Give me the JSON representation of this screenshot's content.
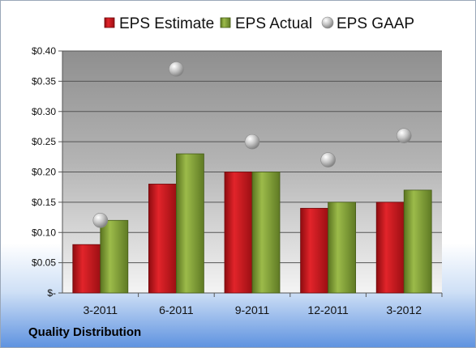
{
  "chart_data": {
    "type": "bar",
    "categories": [
      "3-2011",
      "6-2011",
      "9-2011",
      "12-2011",
      "3-2012"
    ],
    "series": [
      {
        "name": "EPS Estimate",
        "values": [
          0.08,
          0.18,
          0.2,
          0.14,
          0.15
        ],
        "color": "#c0141a",
        "marker": "bar"
      },
      {
        "name": "EPS Actual",
        "values": [
          0.12,
          0.23,
          0.2,
          0.15,
          0.17
        ],
        "color": "#7a9a2e",
        "marker": "bar"
      },
      {
        "name": "EPS GAAP",
        "values": [
          0.12,
          0.37,
          0.25,
          0.22,
          0.26
        ],
        "color": "#b8b8b8",
        "marker": "sphere"
      }
    ],
    "ylim": [
      0,
      0.4
    ],
    "yticks": [
      0,
      0.05,
      0.1,
      0.15,
      0.2,
      0.25,
      0.3,
      0.35,
      0.4
    ],
    "ytick_labels": [
      "$-",
      "$0.05",
      "$0.10",
      "$0.15",
      "$0.20",
      "$0.25",
      "$0.30",
      "$0.35",
      "$0.40"
    ],
    "grid": true,
    "legend_position": "top"
  },
  "footer": {
    "company": "Quality Distribution"
  }
}
